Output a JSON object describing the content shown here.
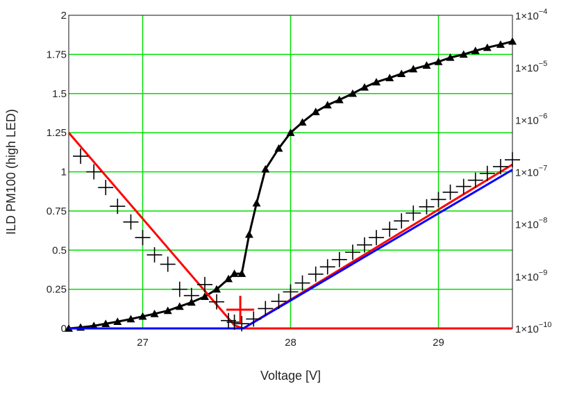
{
  "chart_data": {
    "type": "line",
    "title": "",
    "xlabel": "Voltage [V]",
    "ylabel": "ILD PM100 (high LED)",
    "xlim": [
      26.5,
      29.5
    ],
    "ylim": [
      0,
      2
    ],
    "y2lim_log10": [
      -10,
      -4
    ],
    "y2_scale": "log",
    "grid": true,
    "grid_color": "#00dd00",
    "x_ticks": [
      {
        "value": 27,
        "label": "27"
      },
      {
        "value": 28,
        "label": "28"
      },
      {
        "value": 29,
        "label": "29"
      }
    ],
    "y_ticks": [
      {
        "value": 0,
        "label": "0"
      },
      {
        "value": 0.25,
        "label": "0.25"
      },
      {
        "value": 0.5,
        "label": "0.5"
      },
      {
        "value": 0.75,
        "label": "0.75"
      },
      {
        "value": 1,
        "label": "1"
      },
      {
        "value": 1.25,
        "label": "1.25"
      },
      {
        "value": 1.5,
        "label": "1.5"
      },
      {
        "value": 1.75,
        "label": "1.75"
      },
      {
        "value": 2,
        "label": "2"
      }
    ],
    "y2_ticks": [
      {
        "exp": -10,
        "base": "1×10",
        "sup": "−10"
      },
      {
        "exp": -9,
        "base": "1×10",
        "sup": "−9"
      },
      {
        "exp": -8,
        "base": "1×10",
        "sup": "−8"
      },
      {
        "exp": -7,
        "base": "1×10",
        "sup": "−7"
      },
      {
        "exp": -6,
        "base": "1×10",
        "sup": "−6"
      },
      {
        "exp": -5,
        "base": "1×10",
        "sup": "−5"
      },
      {
        "exp": -4,
        "base": "1×10",
        "sup": "−4"
      }
    ],
    "series": [
      {
        "axis": "right",
        "color": "#000000",
        "marker": "triangle",
        "x": [
          26.5,
          26.58,
          26.67,
          26.75,
          26.83,
          26.92,
          27.0,
          27.08,
          27.17,
          27.25,
          27.33,
          27.42,
          27.5,
          27.58,
          27.62,
          27.67,
          27.72,
          27.77,
          27.83,
          27.92,
          28.0,
          28.08,
          28.17,
          28.25,
          28.33,
          28.42,
          28.5,
          28.58,
          28.67,
          28.75,
          28.83,
          28.92,
          29.0,
          29.08,
          29.17,
          29.25,
          29.33,
          29.42,
          29.5
        ],
        "log10": [
          -10.0,
          -9.98,
          -9.95,
          -9.91,
          -9.87,
          -9.82,
          -9.77,
          -9.72,
          -9.66,
          -9.58,
          -9.5,
          -9.39,
          -9.25,
          -9.05,
          -8.95,
          -8.95,
          -8.2,
          -7.6,
          -6.95,
          -6.55,
          -6.25,
          -6.05,
          -5.85,
          -5.72,
          -5.62,
          -5.5,
          -5.38,
          -5.28,
          -5.2,
          -5.12,
          -5.03,
          -4.96,
          -4.89,
          -4.81,
          -4.75,
          -4.68,
          -4.62,
          -4.56,
          -4.5
        ]
      },
      {
        "axis": "left",
        "color": "#ff0000",
        "marker": "none",
        "x": [
          26.5,
          27.62,
          27.68,
          29.5
        ],
        "y": [
          1.25,
          0.02,
          0.0,
          0.0
        ]
      },
      {
        "axis": "right",
        "color": "#ff0000",
        "marker": "none",
        "x": [
          27.68,
          29.5
        ],
        "log10": [
          -10.0,
          -6.86
        ]
      },
      {
        "axis": "right",
        "color": "#0000ff",
        "marker": "none",
        "x": [
          26.5,
          27.68,
          29.5
        ],
        "log10": [
          -10.0,
          -10.0,
          -6.96
        ]
      },
      {
        "axis": "left",
        "color": "#000000",
        "marker": "plus",
        "x": [
          26.58,
          26.67,
          26.75,
          26.83,
          26.92,
          27.0,
          27.08,
          27.17,
          27.25,
          27.33,
          27.42,
          27.5,
          27.58,
          27.62,
          27.67
        ],
        "y": [
          1.1,
          1.0,
          0.9,
          0.78,
          0.68,
          0.58,
          0.47,
          0.41,
          0.25,
          0.21,
          0.28,
          0.17,
          0.05,
          0.04,
          0.03
        ]
      },
      {
        "axis": "right",
        "color": "#000000",
        "marker": "plus",
        "x": [
          27.75,
          27.83,
          27.92,
          28.0,
          28.08,
          28.17,
          28.25,
          28.33,
          28.42,
          28.5,
          28.58,
          28.67,
          28.75,
          28.83,
          28.92,
          29.0,
          29.08,
          29.17,
          29.25,
          29.33,
          29.42,
          29.5
        ],
        "log10": [
          -9.82,
          -9.62,
          -9.48,
          -9.3,
          -9.13,
          -8.96,
          -8.82,
          -8.68,
          -8.54,
          -8.4,
          -8.26,
          -8.1,
          -7.94,
          -7.79,
          -7.67,
          -7.53,
          -7.39,
          -7.28,
          -7.16,
          -7.03,
          -6.9,
          -6.77
        ]
      },
      {
        "axis": "left",
        "color": "#ff0000",
        "marker": "plus-large",
        "x": [
          27.66
        ],
        "y": [
          0.12
        ]
      }
    ]
  }
}
